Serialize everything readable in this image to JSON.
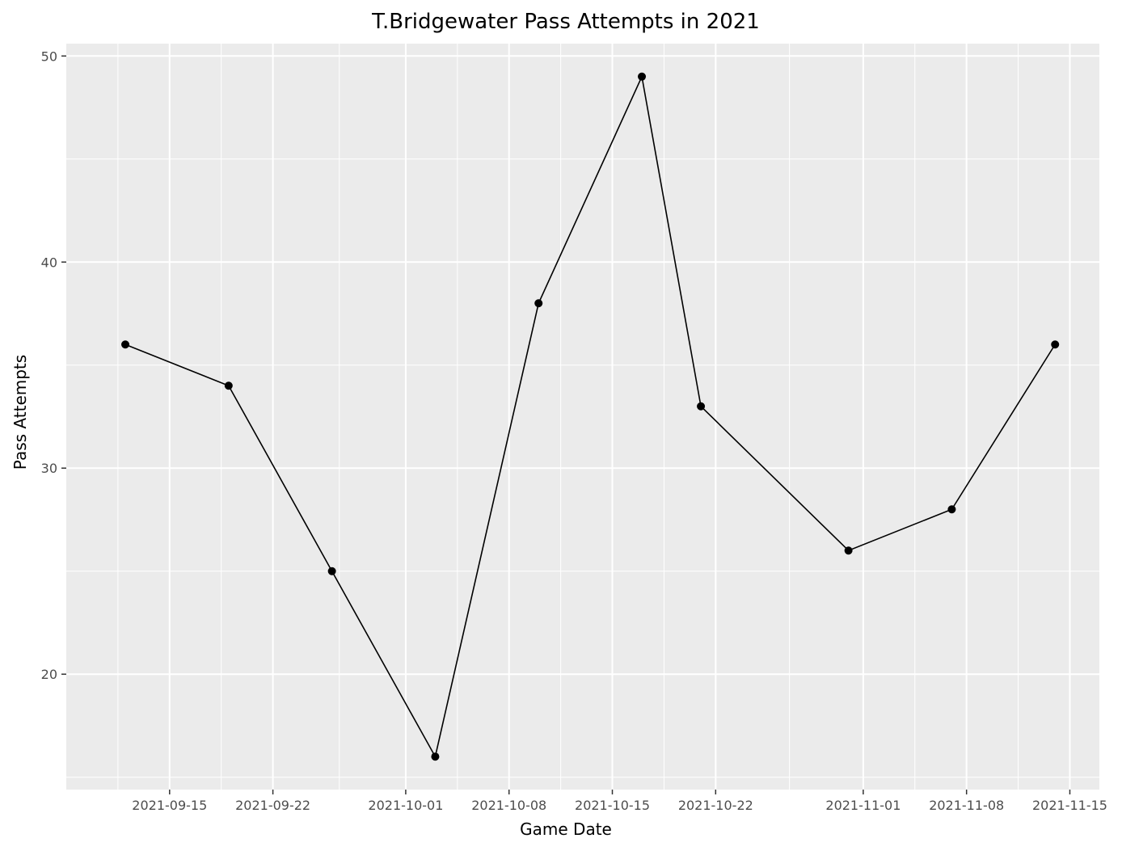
{
  "chart_data": {
    "type": "line",
    "title": "T.Bridgewater Pass Attempts in 2021",
    "xlabel": "Game Date",
    "ylabel": "Pass Attempts",
    "x_type": "date",
    "xlim": [
      "2021-09-08",
      "2021-11-17"
    ],
    "ylim": [
      14.4,
      50.6
    ],
    "x_ticks": [
      "2021-09-15",
      "2021-09-22",
      "2021-10-01",
      "2021-10-08",
      "2021-10-15",
      "2021-10-22",
      "2021-11-01",
      "2021-11-08",
      "2021-11-15"
    ],
    "y_ticks": [
      20,
      30,
      40,
      50
    ],
    "grid": true,
    "series": [
      {
        "x": [
          "2021-09-12",
          "2021-09-19",
          "2021-09-26",
          "2021-10-03",
          "2021-10-10",
          "2021-10-17",
          "2021-10-21",
          "2021-10-31",
          "2021-11-07",
          "2021-11-14"
        ],
        "y": [
          36,
          34,
          25,
          16,
          38,
          49,
          33,
          26,
          28,
          36
        ],
        "color": "#000000",
        "markers": true
      }
    ],
    "colors": {
      "panel": "#ebebeb",
      "grid": "#ffffff",
      "line": "#000000"
    }
  }
}
